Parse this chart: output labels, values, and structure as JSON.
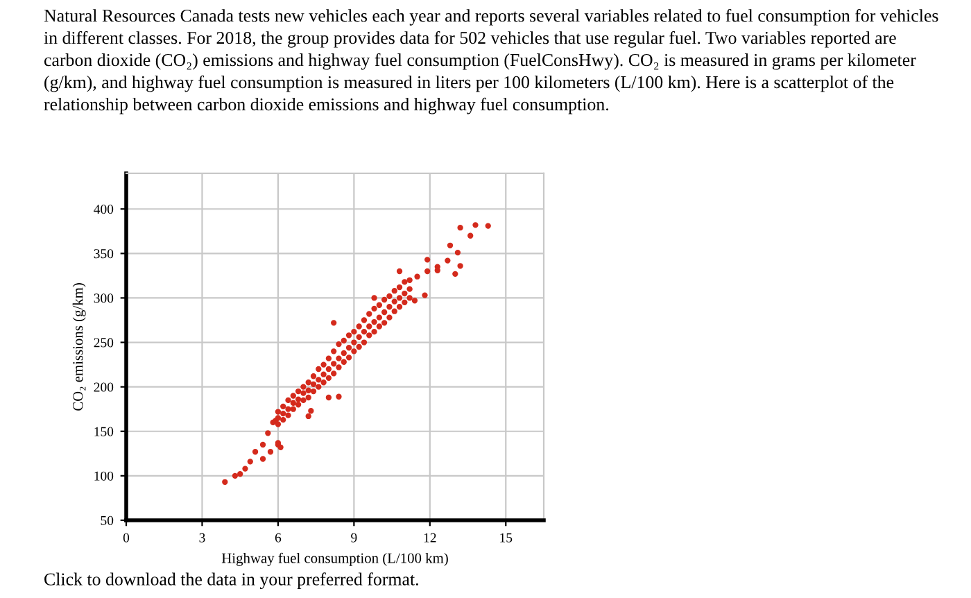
{
  "chart_data": {
    "type": "scatter",
    "title": "Natural Resources Canada tests new vehicles each year and reports several variables related to fuel consumption for vehicles\nin different classes. For 2018, the group provides data for 502 vehicles that use regular fuel. Two variables reported are\ncarbon dioxide (CO₂) emissions and highway fuel consumption (FuelConsHwy). CO₂ is measured in grams per kilometer\n(g/km), and highway fuel consumption is measured in liters per 100 kilometers (L/100 km). Here is a scatterplot of the\nrelationship between carbon dioxide emissions and highway fuel consumption.",
    "xlabel": "Highway fuel consumption (L/100 km)",
    "ylabel": "CO₂ emissions (g/km)",
    "annotations": [
      "Click to download the data in your preferred format."
    ],
    "xlim": [
      0,
      16.5
    ],
    "xticks": [
      0,
      3,
      6,
      9,
      12,
      15
    ],
    "ylim": [
      50,
      440
    ],
    "yticks": [
      50,
      100,
      150,
      200,
      250,
      300,
      350,
      400
    ],
    "grid": true,
    "marker": "circle",
    "series": [
      {
        "color": "#d42a1c",
        "x": [
          3.9,
          4.3,
          4.5,
          4.7,
          4.9,
          5.1,
          5.4,
          5.4,
          5.7,
          6.0,
          6.1,
          5.6,
          5.9,
          13.2,
          13.8,
          14.3,
          13.6,
          12.8,
          13.1,
          13.2,
          13.0,
          12.7,
          12.3,
          12.3,
          11.9,
          11.9,
          11.8,
          11.5,
          11.4,
          5.8,
          6.0,
          6.0,
          6.0,
          6.2,
          6.2,
          6.2,
          6.4,
          6.4,
          6.4,
          6.6,
          6.6,
          6.6,
          6.8,
          6.8,
          6.8,
          7.0,
          7.0,
          7.0,
          7.2,
          7.2,
          7.2,
          7.4,
          7.4,
          7.4,
          7.6,
          7.6,
          7.6,
          7.8,
          7.8,
          7.8,
          8.0,
          8.0,
          8.0,
          8.2,
          8.2,
          8.2,
          8.4,
          8.4,
          8.4,
          8.6,
          8.6,
          8.6,
          8.8,
          8.8,
          8.8,
          9.0,
          9.0,
          9.0,
          9.2,
          9.2,
          9.2,
          9.4,
          9.4,
          9.4,
          9.6,
          9.6,
          9.6,
          9.8,
          9.8,
          9.8,
          10.0,
          10.0,
          10.0,
          10.2,
          10.2,
          10.2,
          10.4,
          10.4,
          10.4,
          10.6,
          10.6,
          10.6,
          10.8,
          10.8,
          10.8,
          11.0,
          11.0,
          11.0,
          11.2,
          11.2,
          11.2,
          8.2,
          9.8,
          10.8,
          7.2,
          7.3,
          8.4,
          6.0,
          8.0
        ],
        "values": [
          93,
          100,
          102,
          108,
          116,
          127,
          135,
          119,
          127,
          135,
          132,
          148,
          162,
          379,
          382,
          381,
          370,
          359,
          351,
          336,
          327,
          342,
          335,
          331,
          343,
          330,
          303,
          324,
          297,
          160,
          165,
          172,
          158,
          170,
          178,
          163,
          175,
          185,
          168,
          182,
          190,
          175,
          186,
          195,
          180,
          193,
          200,
          185,
          196,
          205,
          188,
          203,
          212,
          195,
          208,
          220,
          200,
          214,
          225,
          205,
          220,
          232,
          210,
          226,
          240,
          215,
          232,
          248,
          222,
          238,
          252,
          228,
          244,
          258,
          233,
          250,
          262,
          240,
          256,
          268,
          245,
          262,
          275,
          250,
          268,
          282,
          258,
          273,
          288,
          262,
          278,
          292,
          268,
          284,
          298,
          272,
          290,
          302,
          278,
          296,
          308,
          285,
          300,
          312,
          290,
          305,
          318,
          295,
          310,
          320,
          300,
          272,
          300,
          330,
          167,
          173,
          189,
          137,
          188
        ]
      }
    ]
  }
}
